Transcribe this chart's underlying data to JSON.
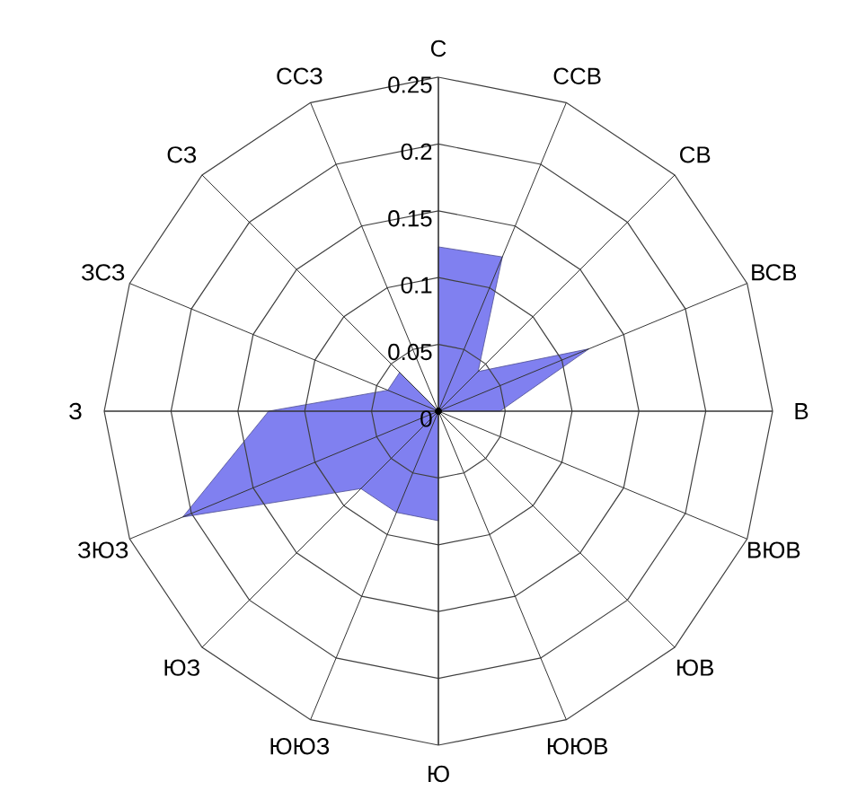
{
  "chart_data": {
    "type": "radar",
    "categories": [
      "С",
      "ССВ",
      "СВ",
      "ВСВ",
      "В",
      "ВЮВ",
      "ЮВ",
      "ЮЮВ",
      "Ю",
      "ЮЮЗ",
      "ЮЗ",
      "ЗЮЗ",
      "З",
      "ЗСЗ",
      "СЗ",
      "ССЗ"
    ],
    "series": [
      {
        "color": "#8080f0",
        "values": [
          0.123,
          0.125,
          0.042,
          0.122,
          0.046,
          0,
          0,
          0,
          0.082,
          0.082,
          0.082,
          0.207,
          0.127,
          0.041,
          0.041,
          0
        ]
      }
    ],
    "ylim": [
      0,
      0.25
    ],
    "yticks": [
      0,
      0.05,
      0.1,
      0.15,
      0.2,
      0.25
    ],
    "grid": true
  }
}
